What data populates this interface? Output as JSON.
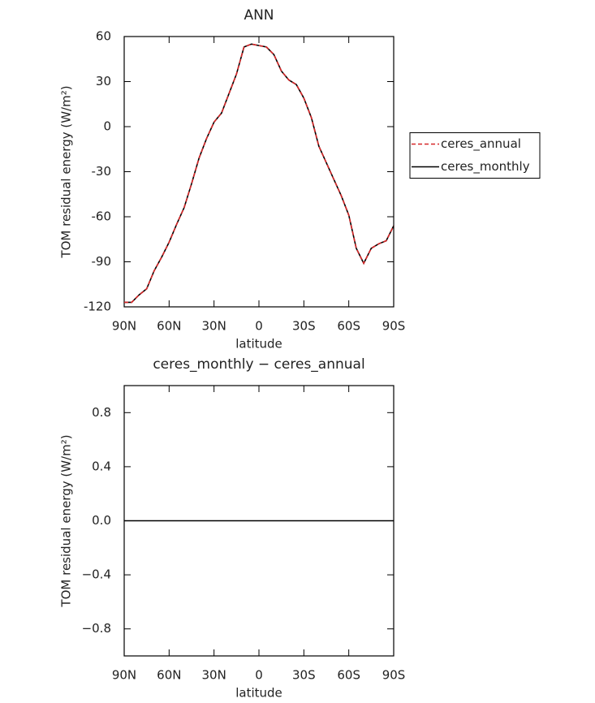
{
  "chart_data": [
    {
      "type": "line",
      "title": "ANN",
      "xlabel": "latitude",
      "ylabel": "TOM residual energy (W/m²)",
      "x": [
        90,
        85,
        80,
        75,
        70,
        65,
        60,
        55,
        50,
        45,
        40,
        35,
        30,
        25,
        20,
        15,
        10,
        5,
        0,
        -5,
        -10,
        -15,
        -20,
        -25,
        -30,
        -35,
        -40,
        -45,
        -50,
        -55,
        -60,
        -65,
        -70,
        -75,
        -80,
        -85,
        -90
      ],
      "xlim": [
        90,
        -90
      ],
      "xticks": [
        {
          "value": 90,
          "label": "90N"
        },
        {
          "value": 60,
          "label": "60N"
        },
        {
          "value": 30,
          "label": "30N"
        },
        0,
        {
          "value": -30,
          "label": "30S"
        },
        {
          "value": -60,
          "label": "60S"
        },
        {
          "value": -90,
          "label": "90S"
        }
      ],
      "ylim": [
        -120,
        60
      ],
      "yticks": [
        -120,
        -90,
        -60,
        -30,
        0,
        30,
        60
      ],
      "legend": "right",
      "series": [
        {
          "name": "ceres_annual",
          "color": "#d62728",
          "dashed": true,
          "values": [
            -117,
            -117,
            -112,
            -108,
            -96,
            -87,
            -77,
            -65,
            -54,
            -38,
            -21,
            -8,
            3,
            9,
            22,
            35,
            53,
            55,
            54,
            53,
            48,
            37,
            31,
            28,
            19,
            6,
            -13,
            -24,
            -35,
            -46,
            -59,
            -81,
            -91,
            -81,
            -78,
            -76,
            -66
          ]
        },
        {
          "name": "ceres_monthly",
          "color": "#000000",
          "dashed": false,
          "values": [
            -117,
            -117,
            -112,
            -108,
            -96,
            -87,
            -77,
            -65,
            -54,
            -38,
            -21,
            -8,
            3,
            9,
            22,
            35,
            53,
            55,
            54,
            53,
            48,
            37,
            31,
            28,
            19,
            6,
            -13,
            -24,
            -35,
            -46,
            -59,
            -81,
            -91,
            -81,
            -78,
            -76,
            -66
          ]
        }
      ]
    },
    {
      "type": "line",
      "title": "ceres_monthly − ceres_annual",
      "xlabel": "latitude",
      "ylabel": "TOM residual energy (W/m²)",
      "x": [
        90,
        85,
        80,
        75,
        70,
        65,
        60,
        55,
        50,
        45,
        40,
        35,
        30,
        25,
        20,
        15,
        10,
        5,
        0,
        -5,
        -10,
        -15,
        -20,
        -25,
        -30,
        -35,
        -40,
        -45,
        -50,
        -55,
        -60,
        -65,
        -70,
        -75,
        -80,
        -85,
        -90
      ],
      "xlim": [
        90,
        -90
      ],
      "xticks": [
        {
          "value": 90,
          "label": "90N"
        },
        {
          "value": 60,
          "label": "60N"
        },
        {
          "value": 30,
          "label": "30N"
        },
        0,
        {
          "value": -30,
          "label": "30S"
        },
        {
          "value": -60,
          "label": "60S"
        },
        {
          "value": -90,
          "label": "90S"
        }
      ],
      "ylim": [
        -1,
        1
      ],
      "yticks": [
        {
          "value": -0.8,
          "label": "−0.8"
        },
        {
          "value": -0.4,
          "label": "−0.4"
        },
        {
          "value": 0,
          "label": "0.0"
        },
        0.4,
        0.8
      ],
      "color": "#000000",
      "values": [
        0,
        0,
        0,
        0,
        0,
        0,
        0,
        0,
        0,
        0,
        0,
        0,
        0,
        0,
        0,
        0,
        0,
        0,
        0,
        0,
        0,
        0,
        0,
        0,
        0,
        0,
        0,
        0,
        0,
        0,
        0,
        0,
        0,
        0,
        0,
        0,
        0
      ]
    }
  ]
}
